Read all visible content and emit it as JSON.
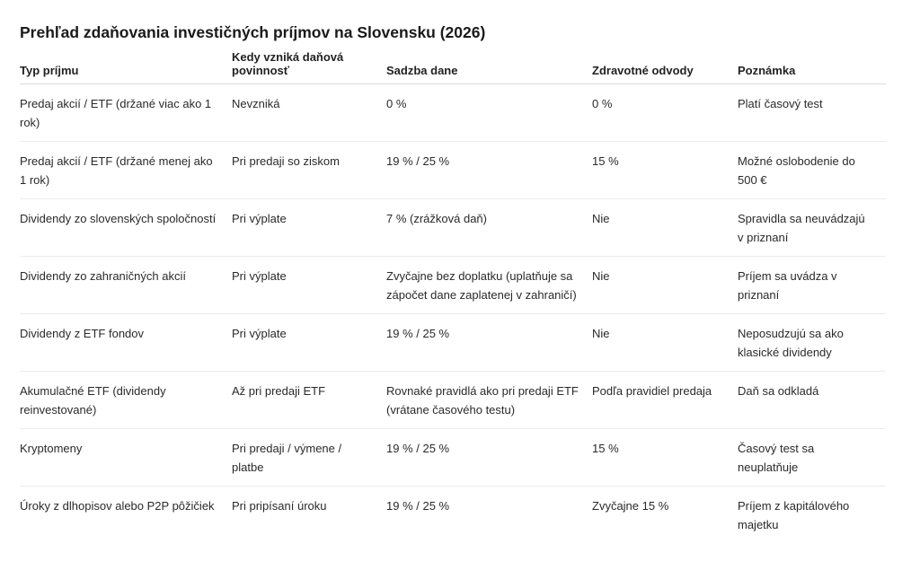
{
  "title": "Prehľad zdaňovania investičných príjmov na Slovensku (2026)",
  "columns": [
    "Typ príjmu",
    "Kedy vzniká daňová povinnosť",
    "Sadzba dane",
    "Zdravotné odvody",
    "Poznámka"
  ],
  "rows": [
    [
      "Predaj akcií / ETF (držané viac ako 1 rok)",
      "Nevzniká",
      "0 %",
      "0 %",
      "Platí časový test"
    ],
    [
      "Predaj akcií / ETF (držané menej ako 1 rok)",
      "Pri predaji so ziskom",
      "19 % / 25 %",
      "15 %",
      "Možné oslobodenie do 500 €"
    ],
    [
      "Dividendy zo slovenských spoločností",
      "Pri výplate",
      "7 % (zrážková daň)",
      "Nie",
      "Spravidla sa neuvádzajú v priznaní"
    ],
    [
      "Dividendy zo zahraničných akcií",
      "Pri výplate",
      "Zvyčajne bez doplatku (uplatňuje sa zápočet dane zaplatenej v zahraničí)",
      "Nie",
      "Príjem sa uvádza v priznaní"
    ],
    [
      "Dividendy z ETF fondov",
      "Pri výplate",
      "19 % / 25 %",
      "Nie",
      "Neposudzujú sa ako klasické dividendy"
    ],
    [
      "Akumulačné ETF (dividendy reinvestované)",
      "Až pri predaji ETF",
      "Rovnaké pravidlá ako pri predaji ETF (vrátane časového testu)",
      "Podľa pravidiel predaja",
      "Daň sa odkladá"
    ],
    [
      "Kryptomeny",
      "Pri predaji / výmene / platbe",
      "19 % / 25 %",
      "15 %",
      "Časový test sa neuplatňuje"
    ],
    [
      "Úroky z dlhopisov alebo P2P pôžičiek",
      "Pri pripísaní úroku",
      "19 % / 25 %",
      "Zvyčajne 15 %",
      "Príjem z kapitálového majetku"
    ]
  ]
}
